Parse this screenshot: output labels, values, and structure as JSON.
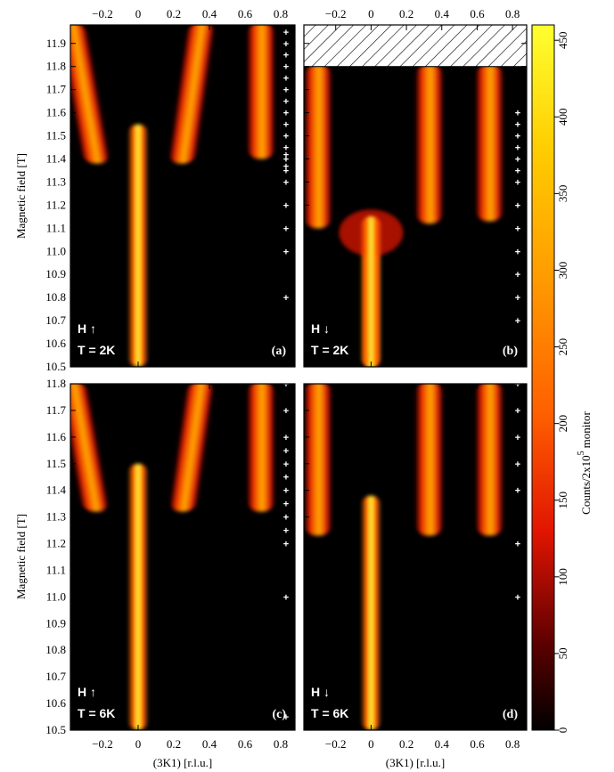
{
  "figure": {
    "y_axis_label": "Magnetic field [T]",
    "x_axis_label": "(3K1) [r.l.u.]",
    "colorbar_label": "Counts/2x10",
    "colorbar_label_sup": "5",
    "colorbar_label_tail": "monitor"
  },
  "colors": {
    "background": "#000000",
    "low": "#8b0000",
    "mid": "#ff3c00",
    "high": "#ffa000",
    "peak": "#ffff40"
  },
  "chart_data": [
    {
      "type": "heatmap",
      "panel": "(a)",
      "field_label": "H ↑",
      "temp_label": "T = 2K",
      "xlim": [
        -0.38,
        0.88
      ],
      "ylim": [
        10.5,
        11.98
      ],
      "x_ticks": [
        -0.2,
        0,
        0.2,
        0.4,
        0.6,
        0.8
      ],
      "y_ticks": [
        10.5,
        10.6,
        10.7,
        10.8,
        10.9,
        11.0,
        11.1,
        11.2,
        11.3,
        11.4,
        11.5,
        11.6,
        11.7,
        11.8,
        11.9
      ],
      "measured_fields": [
        11.95,
        11.9,
        11.85,
        11.8,
        11.75,
        11.7,
        11.65,
        11.6,
        11.55,
        11.5,
        11.45,
        11.42,
        11.4,
        11.37,
        11.35,
        11.3,
        11.2,
        11.1,
        11.0,
        10.8
      ],
      "features": [
        {
          "name": "commensurate peak",
          "x": 0.0,
          "y_from": 10.5,
          "y_to": 11.55,
          "intensity": 450
        },
        {
          "name": "satellite",
          "x": -0.3,
          "y_from": 11.38,
          "y_to": 11.98,
          "intensity": 300
        },
        {
          "name": "satellite",
          "x": 0.3,
          "y_from": 11.38,
          "y_to": 11.98,
          "intensity": 300
        },
        {
          "name": "satellite",
          "x": 0.69,
          "y_from": 11.4,
          "y_to": 11.98,
          "intensity": 280
        }
      ],
      "tick_labels_top": true,
      "tick_labels_bottom": false,
      "y_tick_labels": true
    },
    {
      "type": "heatmap",
      "panel": "(b)",
      "field_label": "H ↓",
      "temp_label": "T = 2K",
      "xlim": [
        -0.38,
        0.88
      ],
      "ylim": [
        10.5,
        11.98
      ],
      "not_measured_above": 11.8,
      "measured_fields": [
        11.6,
        11.55,
        11.5,
        11.45,
        11.4,
        11.35,
        11.3,
        11.2,
        11.1,
        11.0,
        10.9,
        10.8,
        10.7
      ],
      "features": [
        {
          "name": "commensurate peak",
          "x": 0.0,
          "y_from": 10.5,
          "y_to": 11.15,
          "intensity": 450
        },
        {
          "name": "satellite",
          "x": -0.3,
          "y_from": 11.1,
          "y_to": 11.8,
          "intensity": 300
        },
        {
          "name": "satellite",
          "x": 0.33,
          "y_from": 11.12,
          "y_to": 11.8,
          "intensity": 320
        },
        {
          "name": "satellite",
          "x": 0.67,
          "y_from": 11.13,
          "y_to": 11.8,
          "intensity": 280
        }
      ],
      "tick_labels_top": true,
      "tick_labels_bottom": false,
      "y_tick_labels": false
    },
    {
      "type": "heatmap",
      "panel": "(c)",
      "field_label": "H ↑",
      "temp_label": "T = 6K",
      "xlim": [
        -0.38,
        0.88
      ],
      "ylim": [
        10.5,
        11.8
      ],
      "y_ticks": [
        10.5,
        10.6,
        10.7,
        10.8,
        10.9,
        11.0,
        11.1,
        11.2,
        11.3,
        11.4,
        11.5,
        11.6,
        11.7,
        11.8
      ],
      "measured_fields": [
        11.8,
        11.7,
        11.6,
        11.55,
        11.5,
        11.45,
        11.4,
        11.35,
        11.3,
        11.25,
        11.2,
        11.0,
        10.55
      ],
      "features": [
        {
          "name": "commensurate peak",
          "x": 0.0,
          "y_from": 10.5,
          "y_to": 11.5,
          "intensity": 450
        },
        {
          "name": "satellite",
          "x": -0.3,
          "y_from": 11.32,
          "y_to": 11.8,
          "intensity": 300
        },
        {
          "name": "satellite",
          "x": 0.3,
          "y_from": 11.32,
          "y_to": 11.8,
          "intensity": 300
        },
        {
          "name": "satellite",
          "x": 0.69,
          "y_from": 11.32,
          "y_to": 11.8,
          "intensity": 260
        }
      ],
      "tick_labels_top": false,
      "tick_labels_bottom": true,
      "y_tick_labels": true
    },
    {
      "type": "heatmap",
      "panel": "(d)",
      "field_label": "H ↓",
      "temp_label": "T = 6K",
      "xlim": [
        -0.38,
        0.88
      ],
      "ylim": [
        10.5,
        11.8
      ],
      "measured_fields": [
        11.8,
        11.7,
        11.6,
        11.5,
        11.4,
        11.2,
        11.0
      ],
      "features": [
        {
          "name": "commensurate peak",
          "x": 0.0,
          "y_from": 10.5,
          "y_to": 11.38,
          "intensity": 450
        },
        {
          "name": "satellite",
          "x": -0.3,
          "y_from": 11.23,
          "y_to": 11.8,
          "intensity": 300
        },
        {
          "name": "satellite",
          "x": 0.33,
          "y_from": 11.23,
          "y_to": 11.8,
          "intensity": 320
        },
        {
          "name": "satellite",
          "x": 0.67,
          "y_from": 11.23,
          "y_to": 11.8,
          "intensity": 280
        }
      ],
      "tick_labels_top": false,
      "tick_labels_bottom": true,
      "y_tick_labels": false
    },
    {
      "type": "colorbar",
      "ticks": [
        0,
        50,
        100,
        150,
        200,
        250,
        300,
        350,
        400,
        450
      ],
      "range": [
        0,
        460
      ]
    }
  ]
}
